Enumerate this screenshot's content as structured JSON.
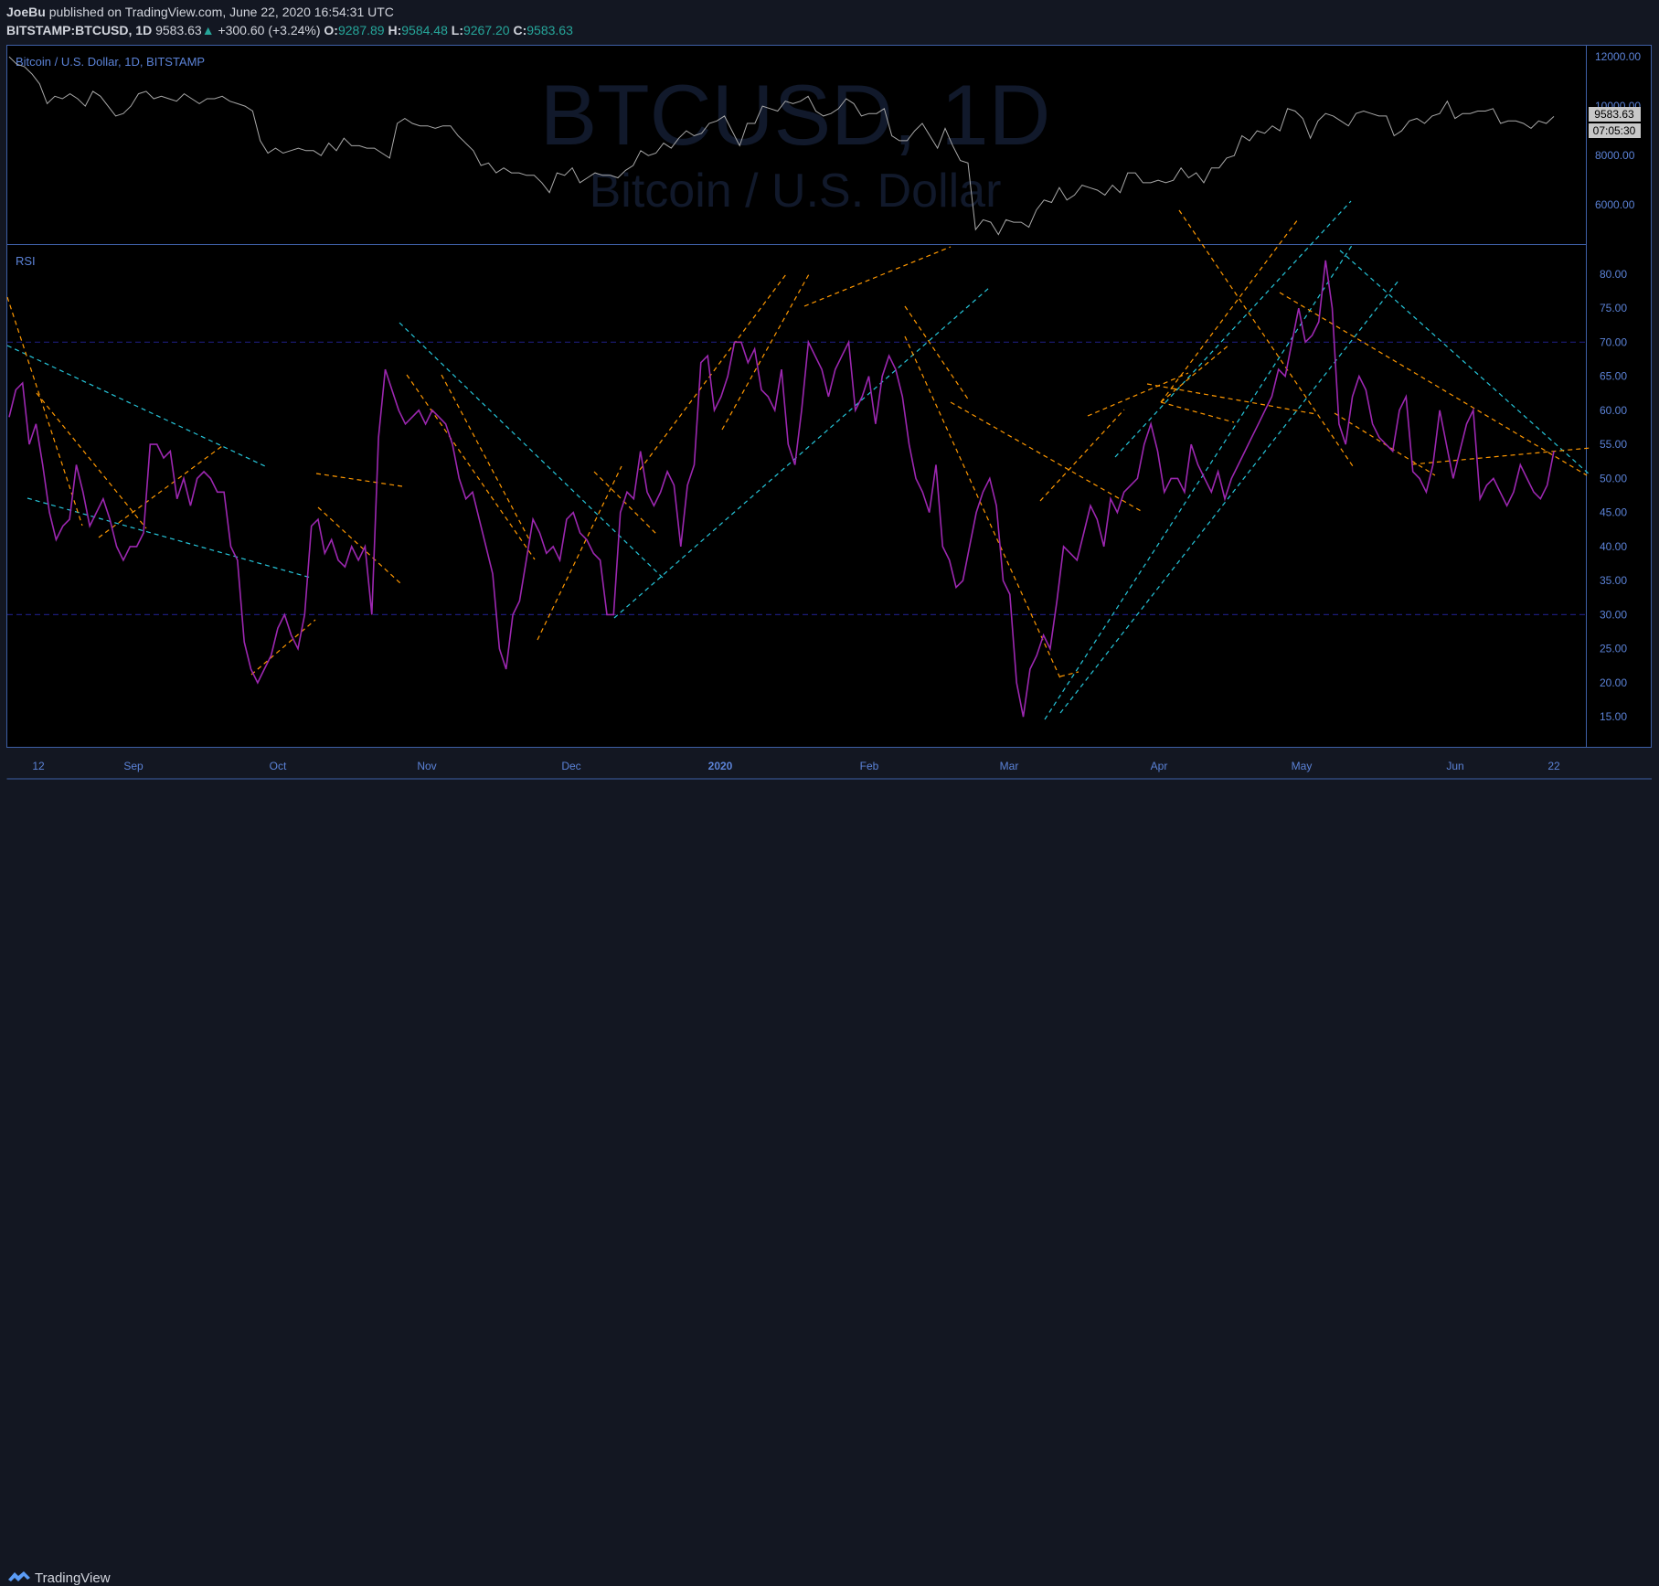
{
  "header": {
    "author": "JoeBu",
    "published": "published on TradingView.com, June 22, 2020 16:54:31 UTC",
    "symbol": "BITSTAMP:BTCUSD, 1D",
    "last": "9583.63",
    "up_arrow": "▲",
    "change": "+300.60 (+3.24%)",
    "o_label": "O:",
    "o": "9287.89",
    "h_label": "H:",
    "h": "9584.48",
    "l_label": "L:",
    "l": "9267.20",
    "c_label": "C:",
    "c": "9583.63"
  },
  "price_pane": {
    "legend": "Bitcoin / U.S. Dollar, 1D, BITSTAMP",
    "watermark_big": "BTCUSD, 1D",
    "watermark_small": "Bitcoin / U.S. Dollar",
    "axis_ticks": [
      "12000.00",
      "10000.00",
      "8000.00",
      "6000.00"
    ],
    "price_tag": "9583.63",
    "countdown_tag": "07:05:30"
  },
  "rsi_pane": {
    "legend": "RSI",
    "axis_ticks": [
      "80.00",
      "75.00",
      "70.00",
      "65.00",
      "60.00",
      "55.00",
      "50.00",
      "45.00",
      "40.00",
      "35.00",
      "30.00",
      "25.00",
      "20.00",
      "15.00"
    ]
  },
  "time_axis": [
    "12",
    "Sep",
    "Oct",
    "Nov",
    "Dec",
    "2020",
    "Feb",
    "Mar",
    "Apr",
    "May",
    "Jun",
    "22"
  ],
  "footer": {
    "brand": "TradingView",
    "logo_icon": "tradingview-logo-icon"
  },
  "colors": {
    "background": "#131722",
    "pane": "#000000",
    "border": "#3e5fa6",
    "rsi_line": "#9c27b0",
    "price_line": "#a8a8a8",
    "cyan_trend": "#26c6da",
    "orange_trend": "#ff9800",
    "bands": "#1a1a70",
    "up": "#26a69a"
  },
  "chart_data": [
    {
      "type": "line",
      "title": "Bitcoin / U.S. Dollar, 1D, BITSTAMP",
      "series": [
        {
          "name": "BTCUSD",
          "values": [
            12000,
            11700,
            11600,
            11300,
            10900,
            10100,
            10400,
            10300,
            10500,
            10300,
            10000,
            10600,
            10400,
            10000,
            9600,
            9700,
            10000,
            10500,
            10600,
            10300,
            10400,
            10300,
            10200,
            10500,
            10300,
            10100,
            10300,
            10300,
            10400,
            10200,
            10100,
            10000,
            9800,
            8600,
            8100,
            8300,
            8100,
            8200,
            8300,
            8200,
            8200,
            8000,
            8500,
            8200,
            8700,
            8400,
            8400,
            8300,
            8300,
            8100,
            7900,
            9300,
            9500,
            9300,
            9200,
            9200,
            9100,
            9200,
            9200,
            8800,
            8500,
            8200,
            7600,
            7700,
            7300,
            7500,
            7300,
            7300,
            7200,
            7200,
            6900,
            6500,
            7300,
            7200,
            7500,
            6900,
            7100,
            7300,
            7200,
            7200,
            7100,
            7400,
            7600,
            8200,
            8000,
            8100,
            8500,
            8300,
            8700,
            9000,
            8800,
            8900,
            9300,
            9400,
            9600,
            9000,
            8400,
            9300,
            9300,
            10000,
            9900,
            9800,
            10200,
            10100,
            10200,
            10400,
            9800,
            9600,
            9700,
            9900,
            10300,
            10100,
            9600,
            9700,
            9700,
            9900,
            8800,
            8600,
            8600,
            9000,
            9300,
            8800,
            8300,
            9100,
            8400,
            7800,
            7700,
            5000,
            5400,
            5300,
            4800,
            5400,
            5300,
            5300,
            5100,
            5800,
            6200,
            6100,
            6700,
            6200,
            6400,
            6800,
            6700,
            6600,
            6400,
            6800,
            6500,
            7300,
            7300,
            6900,
            6900,
            7000,
            6900,
            7000,
            7500,
            7100,
            7300,
            6900,
            7500,
            7500,
            7900,
            8000,
            8800,
            8600,
            9000,
            8900,
            9200,
            9000,
            9900,
            9800,
            9500,
            8700,
            9400,
            9700,
            9600,
            9400,
            9200,
            9700,
            9800,
            9700,
            9600,
            9600,
            8800,
            9000,
            9400,
            9500,
            9300,
            9600,
            9700,
            10200,
            9500,
            9700,
            9700,
            9800,
            9800,
            9900,
            9300,
            9400,
            9400,
            9300,
            9100,
            9400,
            9300,
            9584
          ],
          "last": 9583.63
        }
      ],
      "ylim": [
        4600,
        12300
      ],
      "yticks": [
        12000,
        10000,
        8000,
        6000
      ]
    },
    {
      "type": "line",
      "title": "RSI",
      "series": [
        {
          "name": "RSI",
          "values": [
            59,
            63,
            64,
            55,
            58,
            52,
            45,
            41,
            43,
            44,
            52,
            48,
            43,
            45,
            47,
            44,
            40,
            38,
            40,
            40,
            42,
            55,
            55,
            53,
            54,
            47,
            50,
            46,
            50,
            51,
            50,
            48,
            48,
            40,
            38,
            26,
            22,
            20,
            22,
            24,
            28,
            30,
            27,
            25,
            30,
            43,
            44,
            39,
            41,
            38,
            37,
            40,
            38,
            40,
            30,
            56,
            66,
            63,
            60,
            58,
            59,
            60,
            58,
            60,
            59,
            58,
            55,
            50,
            47,
            48,
            44,
            40,
            36,
            25,
            22,
            30,
            32,
            38,
            44,
            42,
            39,
            40,
            38,
            44,
            45,
            42,
            41,
            39,
            38,
            30,
            30,
            45,
            48,
            47,
            54,
            48,
            46,
            48,
            51,
            49,
            40,
            49,
            52,
            67,
            68,
            60,
            62,
            65,
            70,
            70,
            67,
            69,
            63,
            62,
            60,
            66,
            55,
            52,
            60,
            70,
            68,
            66,
            62,
            66,
            68,
            70,
            60,
            62,
            65,
            58,
            65,
            68,
            66,
            62,
            55,
            50,
            48,
            45,
            52,
            40,
            38,
            34,
            35,
            40,
            45,
            48,
            50,
            46,
            35,
            33,
            20,
            15,
            22,
            24,
            27,
            25,
            32,
            40,
            39,
            38,
            42,
            46,
            44,
            40,
            47,
            45,
            48,
            49,
            50,
            55,
            58,
            54,
            48,
            50,
            50,
            48,
            55,
            52,
            50,
            48,
            51,
            47,
            50,
            52,
            54,
            56,
            58,
            60,
            62,
            66,
            65,
            70,
            75,
            70,
            71,
            73,
            82,
            75,
            58,
            55,
            62,
            65,
            63,
            58,
            56,
            55,
            54,
            60,
            62,
            51,
            50,
            48,
            52,
            60,
            55,
            50,
            54,
            58,
            60,
            47,
            49,
            50,
            48,
            46,
            48,
            52,
            50,
            48,
            47,
            49,
            54
          ],
          "last": 54
        }
      ],
      "ylim": [
        11,
        84
      ],
      "yticks": [
        80,
        75,
        70,
        65,
        60,
        55,
        50,
        45,
        40,
        35,
        30,
        25,
        20,
        15
      ],
      "bands": [
        70,
        30
      ]
    }
  ]
}
